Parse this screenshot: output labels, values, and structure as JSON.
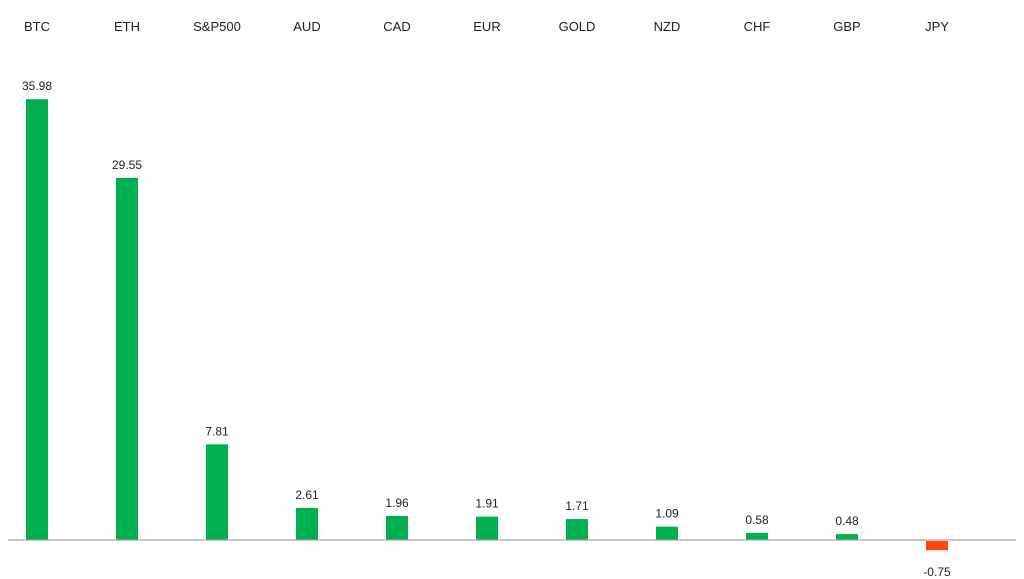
{
  "chart_data": {
    "type": "bar",
    "title": "",
    "xlabel": "",
    "ylabel": "",
    "categories": [
      "BTC",
      "ETH",
      "S&P500",
      "AUD",
      "CAD",
      "EUR",
      "GOLD",
      "NZD",
      "CHF",
      "GBP",
      "JPY"
    ],
    "values": [
      35.98,
      29.55,
      7.81,
      2.61,
      1.96,
      1.91,
      1.71,
      1.09,
      0.58,
      0.48,
      -0.75
    ],
    "value_labels": [
      "35.98",
      "29.55",
      "7.81",
      "2.61",
      "1.96",
      "1.91",
      "1.71",
      "1.09",
      "0.58",
      "0.48",
      "-0.75"
    ],
    "ylim": [
      -0.75,
      35.98
    ],
    "grid": false,
    "legend": "none",
    "category_label_position": "top",
    "colors": {
      "positive": "#00b050",
      "negative": "#ff4a0f",
      "axis": "#a6a6a6"
    }
  }
}
